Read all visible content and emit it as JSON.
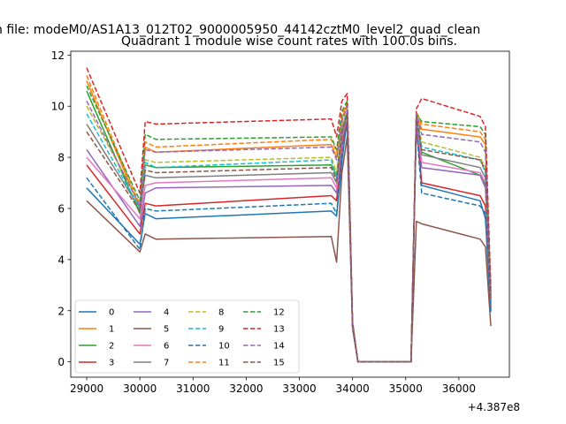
{
  "figure": {
    "suptitle": "n file: modeM0/AS1A13_012T02_9000005950_44142cztM0_level2_quad_clean",
    "axes_title": "Quadrant 1 module wise count rates with 100.0s bins.",
    "offset_text": "+4.387e8"
  },
  "chart_data": {
    "type": "line",
    "title": "Quadrant 1 module wise count rates with 100.0s bins.",
    "xlabel": "",
    "ylabel": "",
    "x_offset": 438700000,
    "xlim": [
      28700,
      36950
    ],
    "ylim": [
      -0.6,
      12.15
    ],
    "x_ticks": [
      29000,
      30000,
      31000,
      32000,
      33000,
      34000,
      35000,
      36000
    ],
    "x_tick_labels": [
      "29000",
      "30000",
      "31000",
      "32000",
      "33000",
      "34000",
      "35000",
      "36000"
    ],
    "y_ticks": [
      0,
      2,
      4,
      6,
      8,
      10,
      12
    ],
    "y_tick_labels": [
      "0",
      "2",
      "4",
      "6",
      "8",
      "10",
      "12"
    ],
    "grid": false,
    "legend": {
      "location": "lower-left",
      "columns": 4
    },
    "x": [
      29000,
      30000,
      30100,
      30300,
      33600,
      33700,
      33800,
      33900,
      34000,
      34100,
      35100,
      35200,
      35300,
      36400,
      36500,
      36600
    ],
    "series": [
      {
        "name": "0",
        "color": "#1f77b4",
        "dash": "solid",
        "values": [
          6.8,
          4.6,
          5.8,
          5.6,
          5.9,
          5.7,
          7.8,
          9.5,
          1.4,
          0,
          0,
          9.6,
          6.9,
          6.3,
          5.6,
          2.0
        ]
      },
      {
        "name": "1",
        "color": "#ff7f0e",
        "dash": "solid",
        "values": [
          11.0,
          6.0,
          8.4,
          8.2,
          8.5,
          8.0,
          9.5,
          10.1,
          1.5,
          0,
          0,
          9.7,
          9.1,
          8.8,
          8.5,
          2.6
        ]
      },
      {
        "name": "2",
        "color": "#2ca02c",
        "dash": "solid",
        "values": [
          10.6,
          5.8,
          7.7,
          7.6,
          7.7,
          7.3,
          9.0,
          9.8,
          1.5,
          0,
          0,
          9.6,
          8.2,
          7.3,
          6.9,
          2.3
        ]
      },
      {
        "name": "3",
        "color": "#d62728",
        "dash": "solid",
        "values": [
          7.7,
          5.0,
          6.2,
          6.1,
          6.5,
          6.3,
          8.4,
          9.6,
          1.4,
          0,
          0,
          9.3,
          7.0,
          6.5,
          6.1,
          2.1
        ]
      },
      {
        "name": "4",
        "color": "#9467bd",
        "dash": "solid",
        "values": [
          8.3,
          5.3,
          6.6,
          6.8,
          6.9,
          6.6,
          8.6,
          9.7,
          1.4,
          0,
          0,
          9.4,
          7.6,
          7.3,
          6.8,
          2.2
        ]
      },
      {
        "name": "5",
        "color": "#8c564b",
        "dash": "solid",
        "values": [
          6.3,
          4.3,
          5.0,
          4.8,
          4.9,
          3.9,
          7.4,
          8.8,
          1.3,
          0,
          0,
          5.5,
          5.4,
          4.8,
          4.5,
          1.4
        ]
      },
      {
        "name": "6",
        "color": "#e377c2",
        "dash": "solid",
        "values": [
          8.0,
          5.6,
          6.9,
          7.0,
          7.2,
          6.8,
          8.8,
          9.6,
          1.4,
          0,
          0,
          9.5,
          7.8,
          7.4,
          7.0,
          2.3
        ]
      },
      {
        "name": "7",
        "color": "#7f7f7f",
        "dash": "solid",
        "values": [
          9.3,
          6.0,
          7.3,
          7.2,
          7.4,
          7.0,
          8.9,
          9.7,
          1.5,
          0,
          0,
          9.6,
          8.1,
          7.6,
          7.2,
          2.4
        ]
      },
      {
        "name": "8",
        "color": "#bcbd22",
        "dash": "dashed",
        "values": [
          10.0,
          6.2,
          7.9,
          7.8,
          8.0,
          7.4,
          9.2,
          9.9,
          1.5,
          0,
          0,
          9.7,
          8.6,
          8.0,
          7.6,
          2.5
        ]
      },
      {
        "name": "9",
        "color": "#17becf",
        "dash": "dashed",
        "values": [
          9.7,
          6.0,
          7.8,
          7.6,
          7.9,
          7.2,
          9.1,
          9.8,
          1.5,
          0,
          0,
          9.6,
          8.4,
          7.9,
          7.4,
          2.5
        ]
      },
      {
        "name": "10",
        "color": "#1f77b4",
        "dash": "dashed",
        "values": [
          7.2,
          4.4,
          6.0,
          5.9,
          6.2,
          5.8,
          8.0,
          9.4,
          1.4,
          0,
          0,
          9.2,
          6.6,
          6.1,
          5.8,
          1.9
        ]
      },
      {
        "name": "11",
        "color": "#ff7f0e",
        "dash": "dashed",
        "values": [
          11.2,
          6.1,
          8.6,
          8.4,
          8.7,
          8.2,
          9.7,
          10.2,
          1.5,
          0,
          0,
          9.8,
          9.3,
          9.0,
          8.7,
          2.7
        ]
      },
      {
        "name": "12",
        "color": "#2ca02c",
        "dash": "dashed",
        "values": [
          10.8,
          6.3,
          8.9,
          8.7,
          8.8,
          8.3,
          9.8,
          10.2,
          1.5,
          0,
          0,
          9.7,
          9.4,
          9.2,
          8.9,
          2.7
        ]
      },
      {
        "name": "13",
        "color": "#d62728",
        "dash": "dashed",
        "values": [
          11.5,
          6.6,
          9.4,
          9.3,
          9.5,
          8.8,
          10.2,
          10.5,
          1.6,
          0,
          0,
          9.9,
          10.3,
          9.6,
          9.2,
          2.9
        ]
      },
      {
        "name": "14",
        "color": "#9467bd",
        "dash": "dashed",
        "values": [
          10.2,
          6.1,
          8.3,
          8.2,
          8.4,
          7.9,
          9.4,
          10.0,
          1.5,
          0,
          0,
          9.7,
          8.9,
          8.6,
          8.2,
          2.6
        ]
      },
      {
        "name": "15",
        "color": "#8c564b",
        "dash": "dashed",
        "values": [
          9.0,
          5.9,
          7.5,
          7.4,
          7.6,
          7.1,
          9.0,
          9.7,
          1.5,
          0,
          0,
          9.6,
          8.3,
          7.9,
          7.5,
          2.4
        ]
      }
    ]
  }
}
